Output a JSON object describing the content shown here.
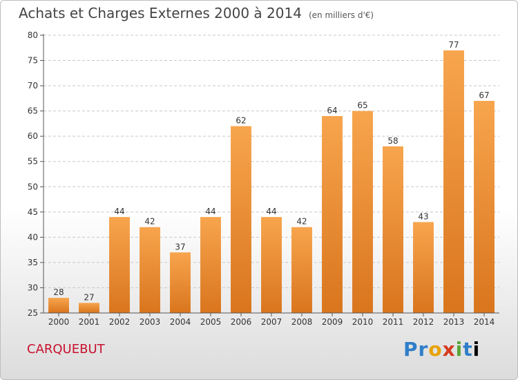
{
  "header": {
    "title": "Achats et Charges Externes 2000 à 2014",
    "unit": "(en milliers d'€)"
  },
  "footer": {
    "commune": "CARQUEBUT",
    "logo": [
      "P",
      "r",
      "o",
      "x",
      "i",
      "t",
      "i"
    ]
  },
  "colors": {
    "bar_light": "#f7a54e",
    "bar_dark": "#d9751d",
    "grid": "#c8c8c8",
    "commune": "#c8102e"
  },
  "chart_data": {
    "type": "bar",
    "title": "Achats et Charges Externes 2000 à 2014",
    "subtitle": "(en milliers d'€)",
    "categories": [
      "2000",
      "2001",
      "2002",
      "2003",
      "2004",
      "2005",
      "2006",
      "2007",
      "2008",
      "2009",
      "2010",
      "2011",
      "2012",
      "2013",
      "2014"
    ],
    "values": [
      28,
      27,
      44,
      42,
      37,
      44,
      62,
      44,
      42,
      64,
      65,
      58,
      43,
      77,
      67
    ],
    "ylim": [
      25,
      80
    ],
    "yticks": [
      25,
      30,
      35,
      40,
      45,
      50,
      55,
      60,
      65,
      70,
      75,
      80
    ],
    "grid": true,
    "xlabel": "",
    "ylabel": ""
  }
}
